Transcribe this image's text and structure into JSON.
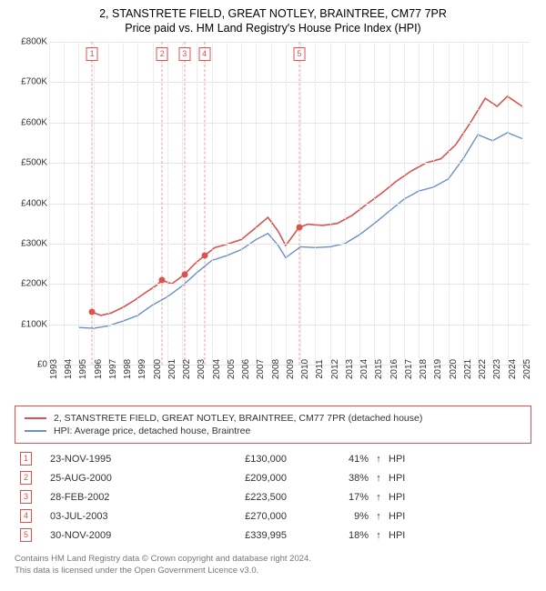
{
  "title_line1": "2, STANSTRETE FIELD, GREAT NOTLEY, BRAINTREE, CM77 7PR",
  "title_line2": "Price paid vs. HM Land Registry's House Price Index (HPI)",
  "chart": {
    "type": "line",
    "x_min": 1993,
    "x_max": 2025.5,
    "y_min": 0,
    "y_max": 800000,
    "y_ticks": [
      0,
      100000,
      200000,
      300000,
      400000,
      500000,
      600000,
      700000,
      800000
    ],
    "y_tick_labels": [
      "£0",
      "£100K",
      "£200K",
      "£300K",
      "£400K",
      "£500K",
      "£600K",
      "£700K",
      "£800K"
    ],
    "x_years": [
      1993,
      1994,
      1995,
      1996,
      1997,
      1998,
      1999,
      2000,
      2001,
      2002,
      2003,
      2004,
      2005,
      2006,
      2007,
      2008,
      2009,
      2010,
      2011,
      2012,
      2013,
      2014,
      2015,
      2016,
      2017,
      2018,
      2019,
      2020,
      2021,
      2022,
      2023,
      2024,
      2025
    ],
    "grid_color": "#e6e6e6",
    "background_color": "#ffffff",
    "series_red": {
      "color": "#d9534f",
      "width": 1.6,
      "label": "2, STANSTRETE FIELD, GREAT NOTLEY, BRAINTREE, CM77 7PR (detached house)",
      "points": [
        [
          1995.9,
          130000
        ],
        [
          1996.5,
          122000
        ],
        [
          1997.2,
          128000
        ],
        [
          1998.0,
          142000
        ],
        [
          1998.8,
          160000
        ],
        [
          1999.5,
          178000
        ],
        [
          2000.2,
          195000
        ],
        [
          2000.65,
          209000
        ],
        [
          2001.3,
          200000
        ],
        [
          2002.16,
          223500
        ],
        [
          2002.8,
          248000
        ],
        [
          2003.5,
          270000
        ],
        [
          2004.2,
          290000
        ],
        [
          2005.0,
          298000
        ],
        [
          2006.0,
          310000
        ],
        [
          2007.0,
          340000
        ],
        [
          2007.8,
          365000
        ],
        [
          2008.5,
          330000
        ],
        [
          2009.0,
          295000
        ],
        [
          2009.9,
          339995
        ],
        [
          2010.5,
          348000
        ],
        [
          2011.5,
          345000
        ],
        [
          2012.5,
          350000
        ],
        [
          2013.5,
          370000
        ],
        [
          2014.5,
          398000
        ],
        [
          2015.5,
          425000
        ],
        [
          2016.5,
          455000
        ],
        [
          2017.5,
          480000
        ],
        [
          2018.5,
          500000
        ],
        [
          2019.5,
          510000
        ],
        [
          2020.5,
          545000
        ],
        [
          2021.5,
          600000
        ],
        [
          2022.5,
          660000
        ],
        [
          2023.3,
          640000
        ],
        [
          2024.0,
          665000
        ],
        [
          2025.0,
          640000
        ]
      ]
    },
    "series_blue": {
      "color": "#6b8fc9",
      "width": 1.4,
      "label": "HPI: Average price, detached house, Braintree",
      "points": [
        [
          1995.0,
          92000
        ],
        [
          1996.0,
          90000
        ],
        [
          1997.0,
          96000
        ],
        [
          1998.0,
          108000
        ],
        [
          1999.0,
          122000
        ],
        [
          2000.0,
          148000
        ],
        [
          2001.0,
          168000
        ],
        [
          2002.0,
          195000
        ],
        [
          2003.0,
          228000
        ],
        [
          2004.0,
          258000
        ],
        [
          2005.0,
          270000
        ],
        [
          2006.0,
          285000
        ],
        [
          2007.0,
          310000
        ],
        [
          2007.8,
          325000
        ],
        [
          2008.5,
          295000
        ],
        [
          2009.0,
          265000
        ],
        [
          2010.0,
          292000
        ],
        [
          2011.0,
          290000
        ],
        [
          2012.0,
          292000
        ],
        [
          2013.0,
          300000
        ],
        [
          2014.0,
          322000
        ],
        [
          2015.0,
          350000
        ],
        [
          2016.0,
          380000
        ],
        [
          2017.0,
          410000
        ],
        [
          2018.0,
          430000
        ],
        [
          2019.0,
          440000
        ],
        [
          2020.0,
          460000
        ],
        [
          2021.0,
          510000
        ],
        [
          2022.0,
          570000
        ],
        [
          2023.0,
          555000
        ],
        [
          2024.0,
          575000
        ],
        [
          2025.0,
          560000
        ]
      ]
    },
    "sale_points": [
      {
        "n": "1",
        "x": 1995.9,
        "price": 130000,
        "date": "23-NOV-1995",
        "pct": "41%"
      },
      {
        "n": "2",
        "x": 2000.65,
        "price": 209000,
        "date": "25-AUG-2000",
        "pct": "38%"
      },
      {
        "n": "3",
        "x": 2002.16,
        "price": 223500,
        "date": "28-FEB-2002",
        "pct": "17%"
      },
      {
        "n": "4",
        "x": 2003.5,
        "price": 270000,
        "date": "03-JUL-2003",
        "pct": "9%"
      },
      {
        "n": "5",
        "x": 2009.92,
        "price": 339995,
        "date": "30-NOV-2009",
        "pct": "18%"
      }
    ],
    "marker_border_color": "#d9534f",
    "marker_text_color": "#d9534f",
    "point_color": "#d9534f"
  },
  "legend": {
    "border_color": "#d9534f",
    "items": [
      {
        "color": "#d9534f",
        "label": "2, STANSTRETE FIELD, GREAT NOTLEY, BRAINTREE, CM77 7PR (detached house)"
      },
      {
        "color": "#6b8fc9",
        "label": "HPI: Average price, detached house, Braintree"
      }
    ]
  },
  "table": {
    "hpi_label": "HPI",
    "arrow": "↑",
    "rows": [
      {
        "n": "1",
        "date": "23-NOV-1995",
        "price": "£130,000",
        "pct": "41%"
      },
      {
        "n": "2",
        "date": "25-AUG-2000",
        "price": "£209,000",
        "pct": "38%"
      },
      {
        "n": "3",
        "date": "28-FEB-2002",
        "price": "£223,500",
        "pct": "17%"
      },
      {
        "n": "4",
        "date": "03-JUL-2003",
        "price": "£270,000",
        "pct": "9%"
      },
      {
        "n": "5",
        "date": "30-NOV-2009",
        "price": "£339,995",
        "pct": "18%"
      }
    ]
  },
  "footer_line1": "Contains HM Land Registry data © Crown copyright and database right 2024.",
  "footer_line2": "This data is licensed under the Open Government Licence v3.0."
}
